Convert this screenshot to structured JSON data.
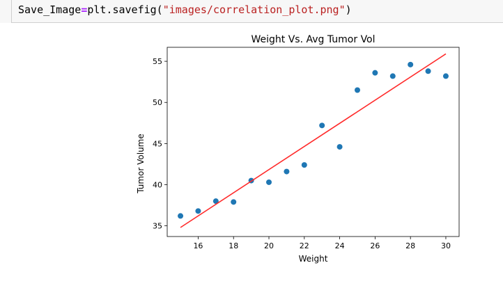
{
  "code": {
    "var_name": "Save_Image",
    "operator": "=",
    "call": "plt.savefig(",
    "string_literal": "\"images/correlation_plot.png\"",
    "close": ")"
  },
  "colors": {
    "points": "#1f77b4",
    "regression_line": "#ff2a2a",
    "code_operator": "#aa22ff",
    "code_string": "#ba2121"
  },
  "chart_data": {
    "type": "scatter",
    "title": "Weight Vs. Avg Tumor Vol",
    "xlabel": "Weight",
    "ylabel": "Tumor Volume",
    "xlim": [
      14.25,
      30.75
    ],
    "ylim": [
      33.7,
      56.7
    ],
    "xticks": [
      16,
      18,
      20,
      22,
      24,
      26,
      28,
      30
    ],
    "yticks": [
      35,
      40,
      45,
      50,
      55
    ],
    "grid": false,
    "series": [
      {
        "x": [
          15,
          16,
          17,
          18,
          19,
          20,
          21,
          22,
          23,
          24,
          25,
          26,
          27,
          28,
          29,
          30
        ],
        "y": [
          36.2,
          36.8,
          38.0,
          37.9,
          40.5,
          40.3,
          41.6,
          42.4,
          47.2,
          44.6,
          51.5,
          53.6,
          53.2,
          54.6,
          53.8,
          53.2
        ]
      }
    ],
    "regression_line": {
      "x": [
        15,
        30
      ],
      "y": [
        34.8,
        55.9
      ]
    }
  }
}
